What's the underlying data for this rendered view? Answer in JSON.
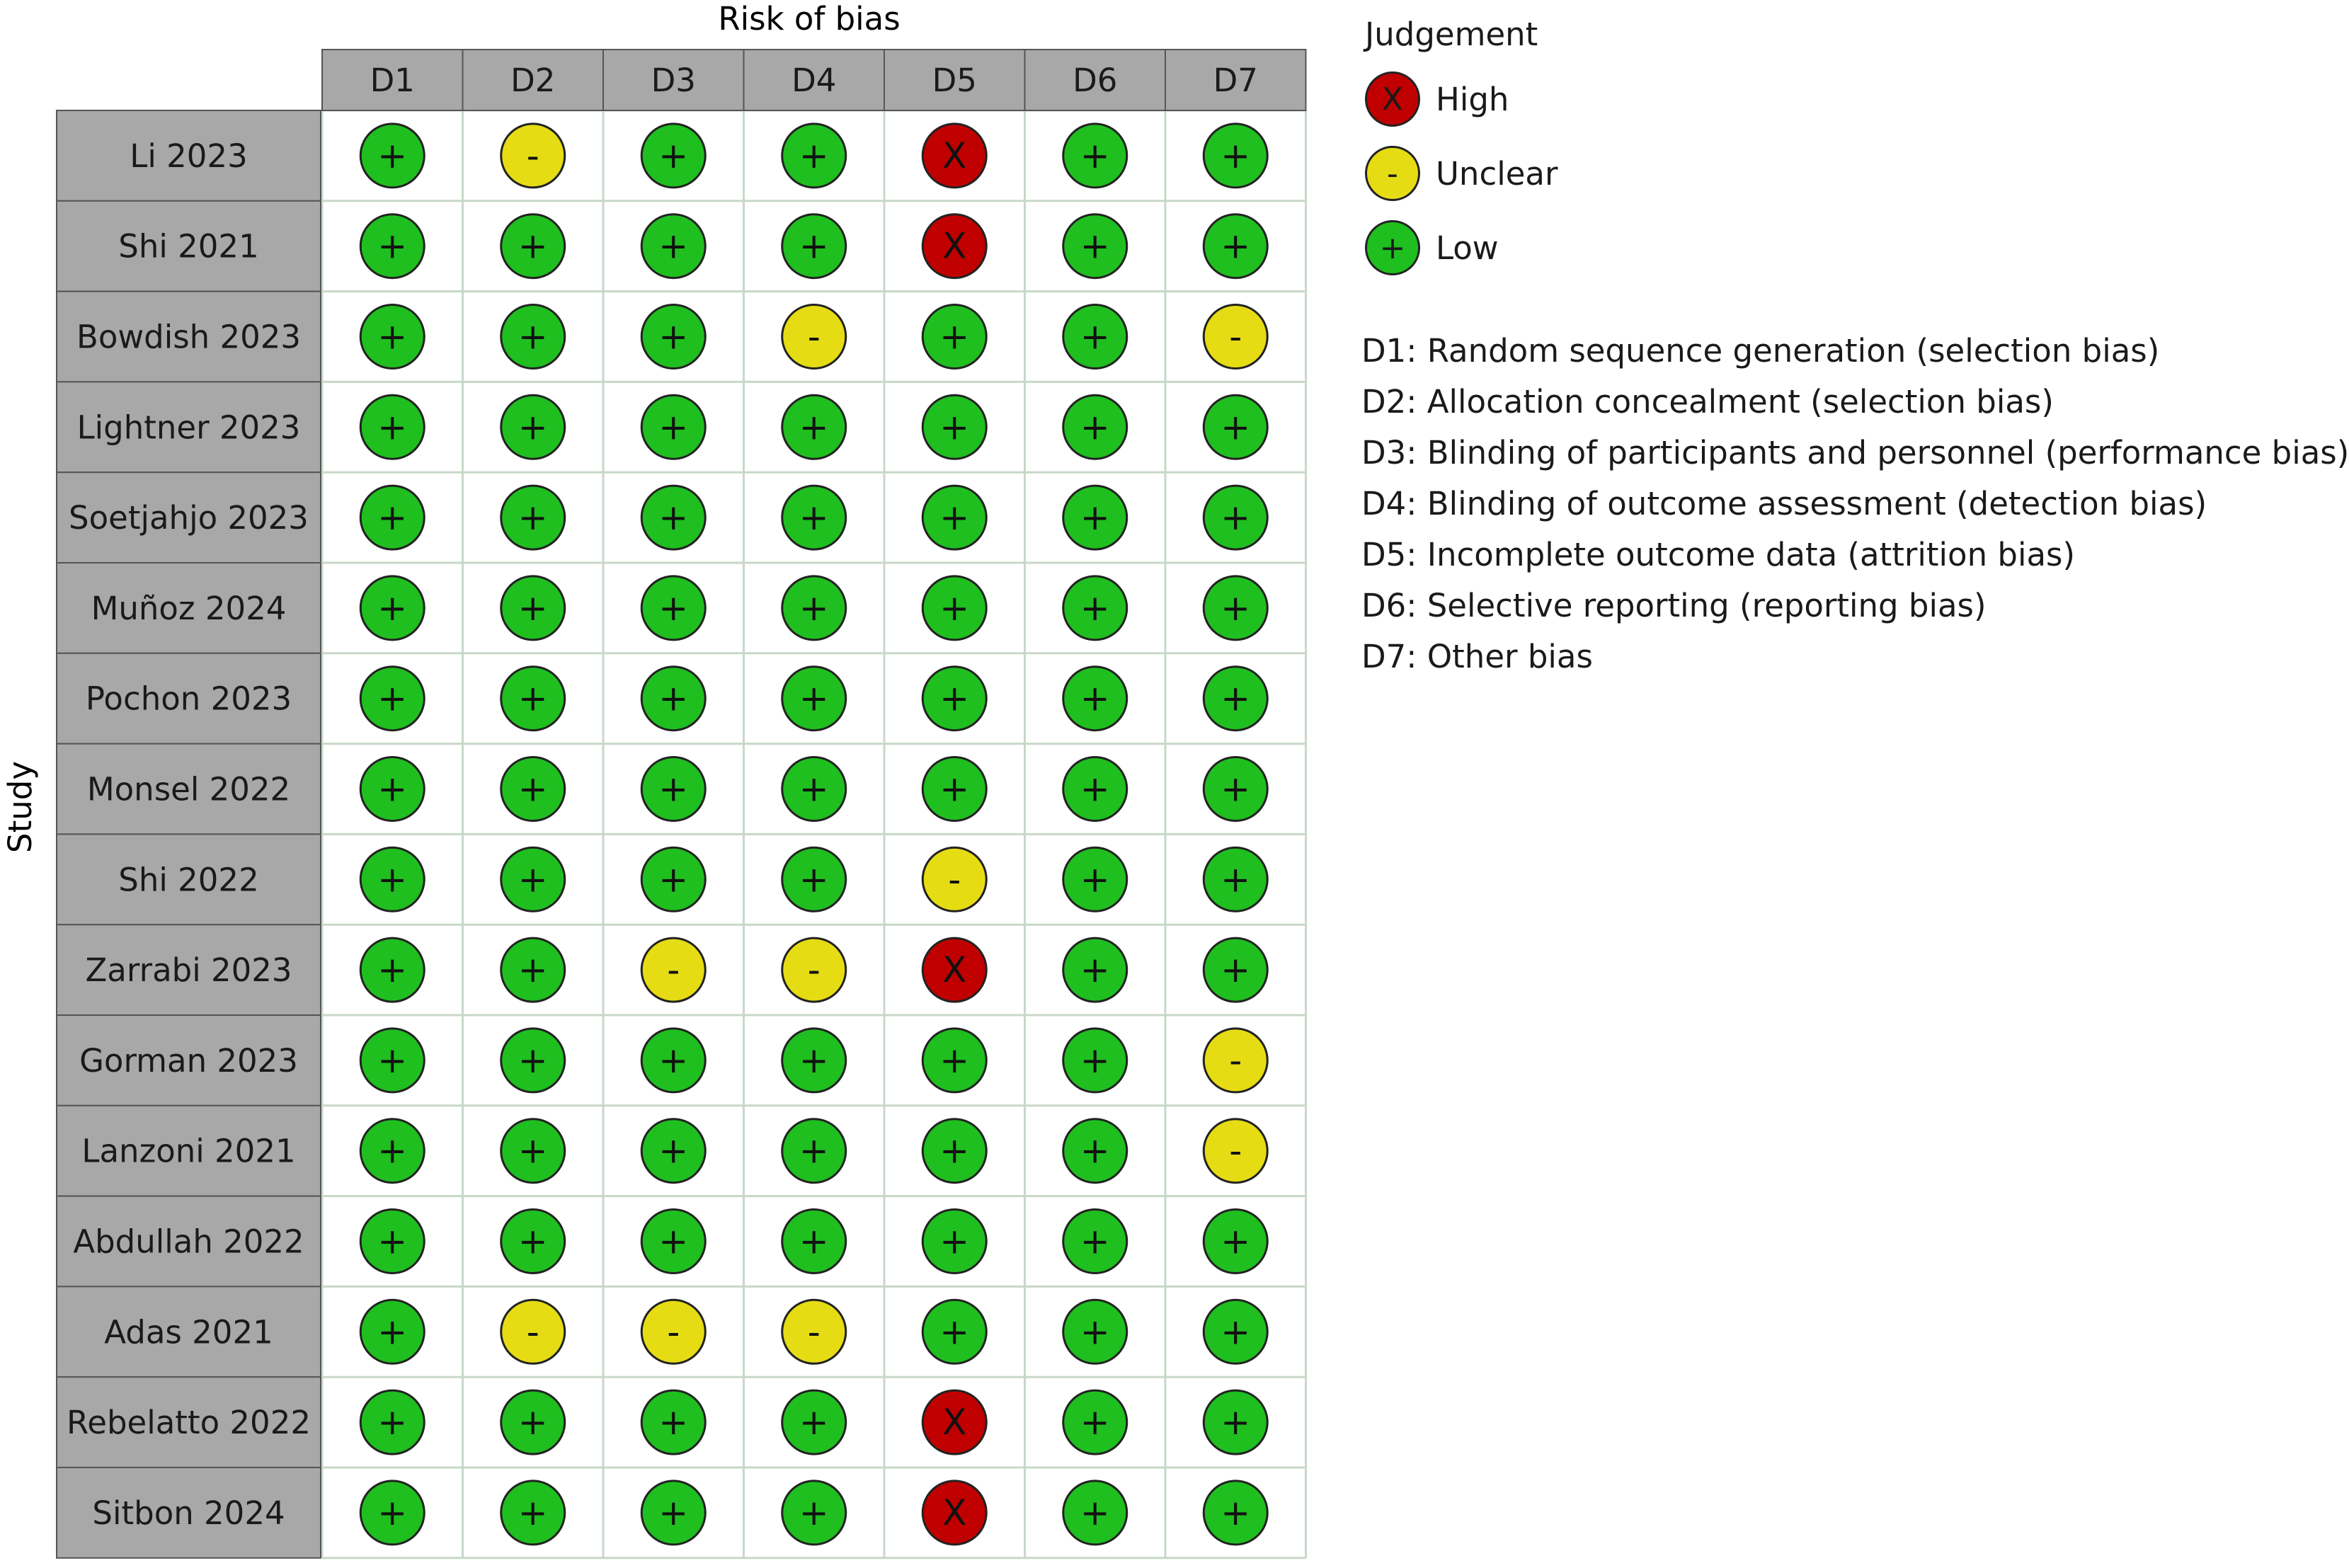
{
  "chart_data": {
    "type": "table",
    "title": "Risk of bias",
    "ylabel": "Study",
    "columns": [
      "D1",
      "D2",
      "D3",
      "D4",
      "D5",
      "D6",
      "D7"
    ],
    "rows": [
      {
        "study": "Li 2023",
        "judgements": [
          "low",
          "unclear",
          "low",
          "low",
          "high",
          "low",
          "low"
        ]
      },
      {
        "study": "Shi 2021",
        "judgements": [
          "low",
          "low",
          "low",
          "low",
          "high",
          "low",
          "low"
        ]
      },
      {
        "study": "Bowdish 2023",
        "judgements": [
          "low",
          "low",
          "low",
          "unclear",
          "low",
          "low",
          "unclear"
        ]
      },
      {
        "study": "Lightner 2023",
        "judgements": [
          "low",
          "low",
          "low",
          "low",
          "low",
          "low",
          "low"
        ]
      },
      {
        "study": "Soetjahjo 2023",
        "judgements": [
          "low",
          "low",
          "low",
          "low",
          "low",
          "low",
          "low"
        ]
      },
      {
        "study": "Muñoz 2024",
        "judgements": [
          "low",
          "low",
          "low",
          "low",
          "low",
          "low",
          "low"
        ]
      },
      {
        "study": "Pochon 2023",
        "judgements": [
          "low",
          "low",
          "low",
          "low",
          "low",
          "low",
          "low"
        ]
      },
      {
        "study": "Monsel 2022",
        "judgements": [
          "low",
          "low",
          "low",
          "low",
          "low",
          "low",
          "low"
        ]
      },
      {
        "study": "Shi 2022",
        "judgements": [
          "low",
          "low",
          "low",
          "low",
          "unclear",
          "low",
          "low"
        ]
      },
      {
        "study": "Zarrabi 2023",
        "judgements": [
          "low",
          "low",
          "unclear",
          "unclear",
          "high",
          "low",
          "low"
        ]
      },
      {
        "study": "Gorman 2023",
        "judgements": [
          "low",
          "low",
          "low",
          "low",
          "low",
          "low",
          "unclear"
        ]
      },
      {
        "study": "Lanzoni 2021",
        "judgements": [
          "low",
          "low",
          "low",
          "low",
          "low",
          "low",
          "unclear"
        ]
      },
      {
        "study": "Abdullah 2022",
        "judgements": [
          "low",
          "low",
          "low",
          "low",
          "low",
          "low",
          "low"
        ]
      },
      {
        "study": "Adas 2021",
        "judgements": [
          "low",
          "unclear",
          "unclear",
          "unclear",
          "low",
          "low",
          "low"
        ]
      },
      {
        "study": "Rebelatto 2022",
        "judgements": [
          "low",
          "low",
          "low",
          "low",
          "high",
          "low",
          "low"
        ]
      },
      {
        "study": "Sitbon 2024",
        "judgements": [
          "low",
          "low",
          "low",
          "low",
          "high",
          "low",
          "low"
        ]
      }
    ],
    "legend": {
      "title": "Judgement",
      "entries": [
        {
          "key": "high",
          "label": "High",
          "symbol": "X",
          "color": "#c00000"
        },
        {
          "key": "unclear",
          "label": "Unclear",
          "symbol": "-",
          "color": "#e6dc14"
        },
        {
          "key": "low",
          "label": "Low",
          "symbol": "+",
          "color": "#1fbf1f"
        }
      ]
    },
    "domain_definitions": [
      "D1: Random sequence generation (selection bias)",
      "D2: Allocation concealment (selection bias)",
      "D3: Blinding of participants and personnel (performance bias)",
      "D4: Blinding of outcome assessment (detection bias)",
      "D5: Incomplete outcome data (attrition bias)",
      "D6: Selective reporting (reporting bias)",
      "D7: Other bias"
    ]
  },
  "colors": {
    "header_fill": "#a8a8a8",
    "grid_line": "#c8d8c8",
    "cell_border": "#ffffff",
    "symbol_stroke": "#222222"
  }
}
